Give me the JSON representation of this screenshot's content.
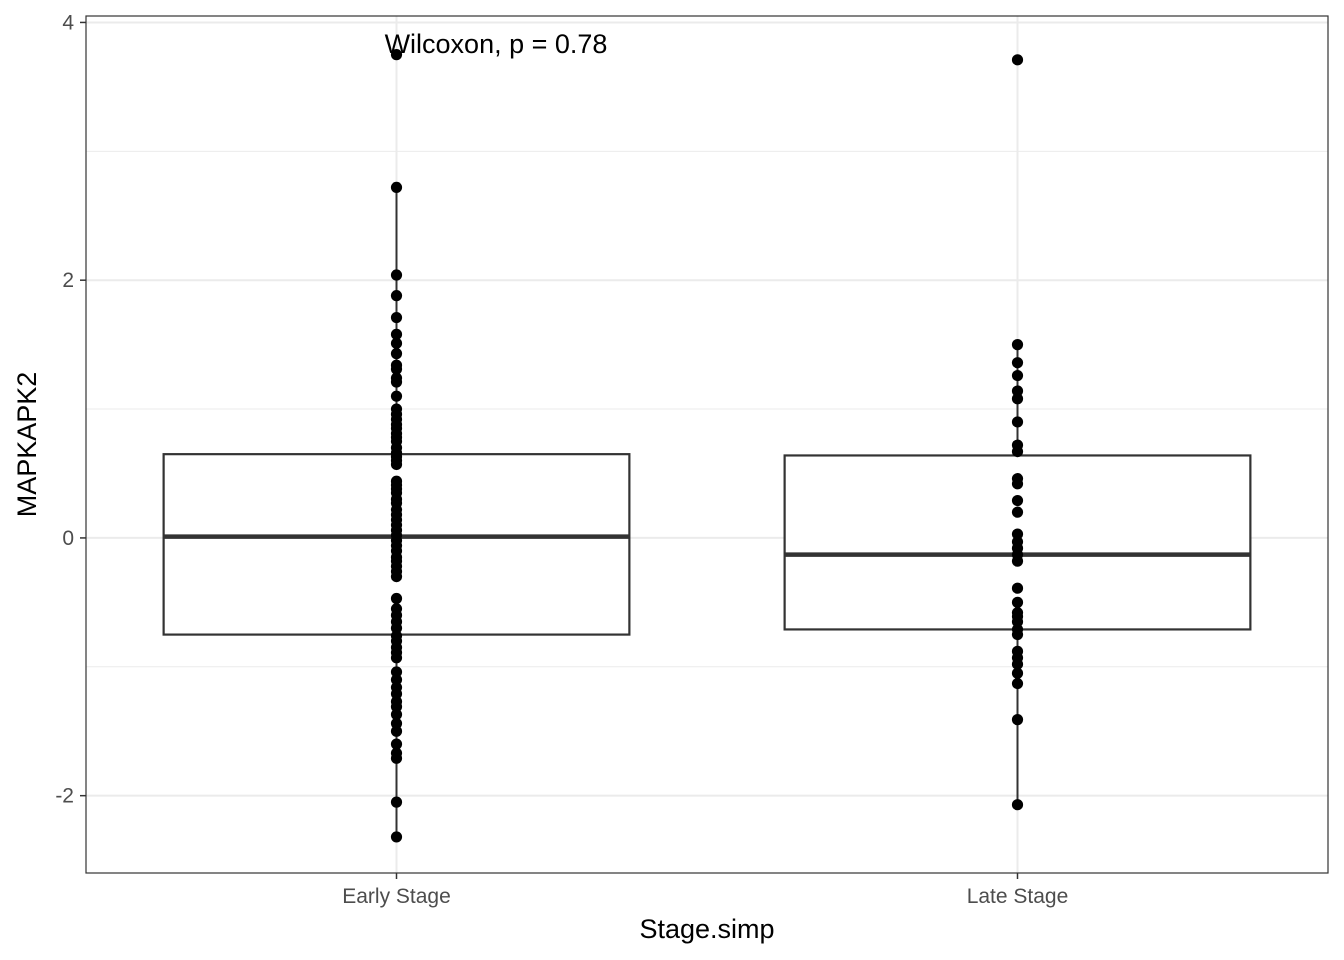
{
  "chart_data": {
    "type": "boxplot",
    "xlabel": "Stage.simp",
    "ylabel": "MAPKAPK2",
    "categories": [
      "Early Stage",
      "Late Stage"
    ],
    "ylim": [
      -2.6,
      4.05
    ],
    "yticks": [
      -2,
      0,
      2,
      4
    ],
    "ytick_labels": [
      "-2",
      "0",
      "2",
      "4"
    ],
    "grid": true,
    "annotation": "Wilcoxon, p = 0.78",
    "boxes": [
      {
        "category": "Early Stage",
        "q1": -0.75,
        "median": 0.01,
        "q3": 0.65,
        "whisker_low": -2.31,
        "whisker_high": 2.72
      },
      {
        "category": "Late Stage",
        "q1": -0.71,
        "median": -0.13,
        "q3": 0.64,
        "whisker_low": -2.07,
        "whisker_high": 1.5
      }
    ],
    "points": [
      {
        "category": "Early Stage",
        "values": [
          3.75,
          2.72,
          2.04,
          1.88,
          1.71,
          1.58,
          1.51,
          1.43,
          1.34,
          1.31,
          1.24,
          1.21,
          1.1,
          1.0,
          0.96,
          0.92,
          0.88,
          0.85,
          0.81,
          0.78,
          0.75,
          0.7,
          0.66,
          0.63,
          0.6,
          0.57,
          0.44,
          0.41,
          0.38,
          0.35,
          0.3,
          0.27,
          0.22,
          0.18,
          0.14,
          0.1,
          0.06,
          0.02,
          -0.02,
          -0.06,
          -0.1,
          -0.15,
          -0.18,
          -0.22,
          -0.26,
          -0.3,
          -0.47,
          -0.55,
          -0.6,
          -0.65,
          -0.7,
          -0.76,
          -0.8,
          -0.85,
          -0.89,
          -0.93,
          -1.04,
          -1.1,
          -1.16,
          -1.21,
          -1.27,
          -1.31,
          -1.37,
          -1.44,
          -1.5,
          -1.6,
          -1.67,
          -1.71,
          -2.05,
          -2.32
        ]
      },
      {
        "category": "Late Stage",
        "values": [
          3.71,
          1.5,
          1.36,
          1.26,
          1.14,
          1.08,
          0.9,
          0.72,
          0.67,
          0.46,
          0.42,
          0.29,
          0.2,
          0.03,
          -0.03,
          -0.08,
          -0.13,
          -0.18,
          -0.39,
          -0.5,
          -0.58,
          -0.61,
          -0.65,
          -0.71,
          -0.75,
          -0.88,
          -0.93,
          -0.98,
          -1.05,
          -1.13,
          -1.41,
          -2.07
        ]
      }
    ]
  }
}
